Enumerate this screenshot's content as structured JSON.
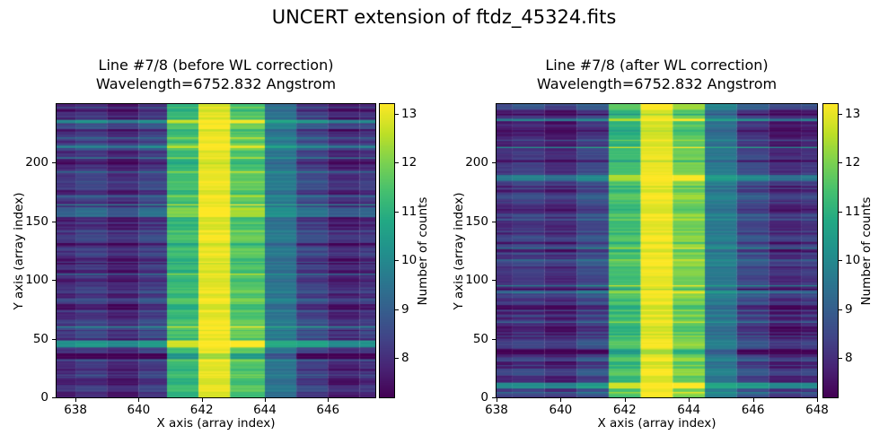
{
  "figure": {
    "title": "UNCERT extension of ftdz_45324.fits",
    "background_color": "#ffffff",
    "text_color": "#000000"
  },
  "palette": {
    "name": "viridis",
    "stops": [
      "#440154",
      "#482475",
      "#414487",
      "#355f8d",
      "#2a788e",
      "#21918c",
      "#22a884",
      "#44bf70",
      "#7ad151",
      "#bddf26",
      "#fde725"
    ]
  },
  "chart_data": [
    {
      "type": "heatmap",
      "title": "Line #7/8 (before WL correction)",
      "subtitle": "Wavelength=6752.832 Angstrom",
      "xlabel": "X axis (array index)",
      "ylabel": "Y axis (array index)",
      "xlim": [
        637.4,
        647.5
      ],
      "ylim": [
        0,
        250
      ],
      "xticks": [
        638,
        640,
        642,
        644,
        646
      ],
      "yticks": [
        0,
        50,
        100,
        150,
        200
      ],
      "colormap": "viridis",
      "grid": false,
      "colorbar": {
        "label": "Number of counts",
        "ticks": [
          8,
          9,
          10,
          11,
          12,
          13
        ],
        "vmin": 7.2,
        "vmax": 13.2
      },
      "n_rows": 250,
      "noise_seed": 1337,
      "row_noise": {
        "persist": 0.52,
        "range": [
          -0.55,
          0.65
        ],
        "bright_spike": 2.2,
        "dark_spike": -1.5,
        "jitter": 0.35
      },
      "column_profile": [
        {
          "x0": 637.4,
          "x1": 638.0,
          "mean_counts": 8.0,
          "noise_scale": 1.0
        },
        {
          "x0": 638.0,
          "x1": 639.0,
          "mean_counts": 8.25,
          "noise_scale": 1.0
        },
        {
          "x0": 639.0,
          "x1": 640.0,
          "mean_counts": 7.85,
          "noise_scale": 1.0
        },
        {
          "x0": 640.0,
          "x1": 640.9,
          "mean_counts": 8.35,
          "noise_scale": 1.0
        },
        {
          "x0": 640.9,
          "x1": 641.9,
          "mean_counts": 11.25,
          "noise_scale": 0.75
        },
        {
          "x0": 641.9,
          "x1": 642.9,
          "mean_counts": 13.0,
          "noise_scale": 0.5
        },
        {
          "x0": 642.9,
          "x1": 644.0,
          "mean_counts": 11.6,
          "noise_scale": 0.8
        },
        {
          "x0": 644.0,
          "x1": 645.0,
          "mean_counts": 9.55,
          "noise_scale": 0.6
        },
        {
          "x0": 645.0,
          "x1": 646.0,
          "mean_counts": 8.45,
          "noise_scale": 1.0
        },
        {
          "x0": 646.0,
          "x1": 647.0,
          "mean_counts": 7.9,
          "noise_scale": 1.0
        },
        {
          "x0": 647.0,
          "x1": 647.5,
          "mean_counts": 8.1,
          "noise_scale": 1.0
        }
      ]
    },
    {
      "type": "heatmap",
      "title": "Line #7/8 (after WL correction)",
      "subtitle": "Wavelength=6752.832 Angstrom",
      "xlabel": "X axis (array index)",
      "ylabel": "Y axis (array index)",
      "xlim": [
        638.0,
        648.0
      ],
      "ylim": [
        0,
        250
      ],
      "xticks": [
        638,
        640,
        642,
        644,
        646,
        648
      ],
      "yticks": [
        0,
        50,
        100,
        150,
        200
      ],
      "colormap": "viridis",
      "grid": false,
      "colorbar": {
        "label": "Number of counts",
        "ticks": [
          8,
          9,
          10,
          11,
          12,
          13
        ],
        "vmin": 7.2,
        "vmax": 13.2
      },
      "n_rows": 250,
      "noise_seed": 4242,
      "row_noise": {
        "persist": 0.52,
        "range": [
          -0.55,
          0.65
        ],
        "bright_spike": 2.2,
        "dark_spike": -1.5,
        "jitter": 0.35
      },
      "column_profile": [
        {
          "x0": 638.0,
          "x1": 638.5,
          "mean_counts": 8.0,
          "noise_scale": 1.0
        },
        {
          "x0": 638.5,
          "x1": 639.5,
          "mean_counts": 8.2,
          "noise_scale": 1.0
        },
        {
          "x0": 639.5,
          "x1": 640.5,
          "mean_counts": 7.9,
          "noise_scale": 1.0
        },
        {
          "x0": 640.5,
          "x1": 641.5,
          "mean_counts": 8.5,
          "noise_scale": 1.0
        },
        {
          "x0": 641.5,
          "x1": 642.5,
          "mean_counts": 11.3,
          "noise_scale": 0.75
        },
        {
          "x0": 642.5,
          "x1": 643.5,
          "mean_counts": 13.0,
          "noise_scale": 0.5
        },
        {
          "x0": 643.5,
          "x1": 644.5,
          "mean_counts": 11.9,
          "noise_scale": 0.8
        },
        {
          "x0": 644.5,
          "x1": 645.5,
          "mean_counts": 9.6,
          "noise_scale": 0.6
        },
        {
          "x0": 645.5,
          "x1": 646.5,
          "mean_counts": 8.5,
          "noise_scale": 1.0
        },
        {
          "x0": 646.5,
          "x1": 647.5,
          "mean_counts": 7.9,
          "noise_scale": 1.0
        },
        {
          "x0": 647.5,
          "x1": 648.0,
          "mean_counts": 8.1,
          "noise_scale": 1.0
        }
      ]
    }
  ]
}
